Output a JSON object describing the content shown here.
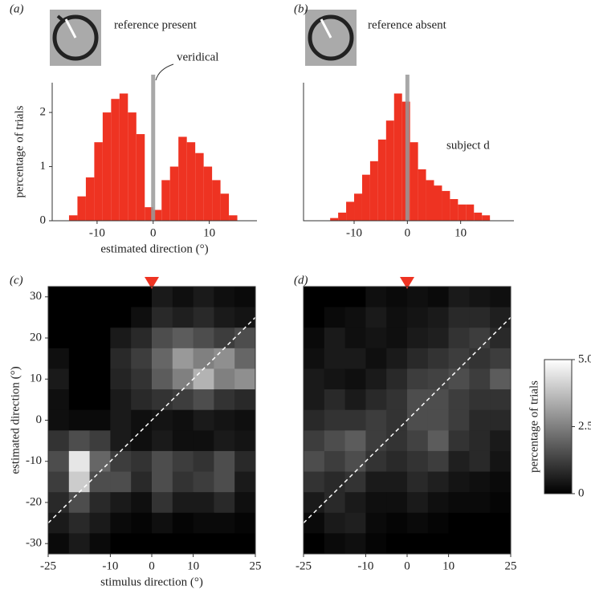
{
  "chart_data": [
    {
      "type": "histogram",
      "panel": "(a)",
      "title": "reference present",
      "annotation": "veridical",
      "xlabel": "estimated direction (°)",
      "ylabel": "percentage of trials",
      "bins": [
        -15,
        -13.5,
        -12,
        -10.5,
        -9,
        -7.5,
        -6,
        -4.5,
        -3,
        -1.5,
        0,
        1.5,
        3,
        4.5,
        6,
        7.5,
        9,
        10.5,
        12,
        13.5,
        15
      ],
      "values": [
        0.1,
        0.45,
        0.8,
        1.45,
        2.0,
        2.25,
        2.35,
        2.0,
        1.6,
        0.25,
        0.2,
        0.75,
        1.0,
        1.55,
        1.45,
        1.25,
        1.0,
        0.75,
        0.5,
        0.1
      ],
      "color": "#ee3322",
      "vline": 0,
      "vline_color": "#999999",
      "xlim": [
        -18,
        18.5
      ],
      "ylim": [
        0,
        2.55
      ],
      "xticks": [
        -10,
        0,
        10
      ],
      "yticks": [
        0,
        1,
        2
      ]
    },
    {
      "type": "histogram",
      "panel": "(b)",
      "title": "reference absent",
      "annotation": "subject d",
      "bins": [
        -14.5,
        -13,
        -11.5,
        -10,
        -8.5,
        -7,
        -5.5,
        -4,
        -2.5,
        -1,
        0.5,
        2,
        3.5,
        5,
        6.5,
        8,
        9.5,
        11,
        12.5,
        14,
        15.5
      ],
      "values": [
        0.05,
        0.15,
        0.35,
        0.5,
        0.85,
        1.1,
        1.5,
        1.85,
        2.35,
        2.2,
        1.45,
        0.95,
        0.75,
        0.65,
        0.55,
        0.4,
        0.3,
        0.3,
        0.15,
        0.1
      ],
      "color": "#ee3322",
      "vline": 0,
      "vline_color": "#999999",
      "xlim": [
        -19.5,
        20
      ],
      "ylim": [
        0,
        2.55
      ],
      "xticks": [
        -10,
        0,
        10
      ]
    },
    {
      "type": "heatmap",
      "panel": "(c)",
      "xlabel": "stimulus direction (°)",
      "ylabel": "estimated direction (°)",
      "x": [
        -22.5,
        -17.5,
        -12.5,
        -7.5,
        -2.5,
        2.5,
        7.5,
        12.5,
        17.5,
        22.5
      ],
      "y": [
        30,
        25,
        20,
        15,
        10,
        5,
        0,
        -5,
        -10,
        -15,
        -20,
        -25,
        -30
      ],
      "values": [
        [
          0,
          0,
          0,
          0,
          0,
          0.5,
          0.3,
          0.5,
          0.3,
          0.2
        ],
        [
          0,
          0,
          0,
          0,
          0.3,
          0.8,
          0.6,
          0.8,
          0.5,
          0.4
        ],
        [
          0,
          0,
          0,
          0.5,
          0.8,
          1.5,
          1.8,
          1.5,
          1.2,
          1.5
        ],
        [
          0.3,
          0,
          0,
          0.8,
          1.2,
          2.0,
          3.0,
          2.5,
          2.8,
          2.0
        ],
        [
          0.5,
          0,
          0,
          0.7,
          1.0,
          1.8,
          2.5,
          3.5,
          2.5,
          2.8
        ],
        [
          0.3,
          0,
          0,
          0.5,
          0.8,
          1.0,
          1.2,
          1.5,
          1.0,
          0.8
        ],
        [
          0.3,
          0.2,
          0.2,
          0.5,
          0.3,
          0.4,
          0.3,
          0.5,
          0.4,
          0.3
        ],
        [
          1.0,
          1.5,
          1.2,
          0.5,
          0.3,
          0.5,
          0.3,
          0.3,
          0.5,
          0.4
        ],
        [
          1.5,
          4.5,
          2.0,
          1.2,
          1.0,
          1.5,
          1.2,
          1.0,
          1.5,
          0.8
        ],
        [
          1.2,
          4.0,
          1.5,
          1.5,
          0.8,
          1.5,
          1.0,
          1.2,
          1.5,
          0.5
        ],
        [
          0.8,
          1.5,
          0.8,
          0.5,
          0.3,
          1.0,
          0.5,
          0.5,
          0.8,
          0.3
        ],
        [
          0.5,
          0.8,
          0.5,
          0.2,
          0.1,
          0.3,
          0.1,
          0.2,
          0.2,
          0.1
        ],
        [
          0.2,
          0.5,
          0.2,
          0,
          0,
          0,
          0,
          0,
          0,
          0
        ]
      ],
      "identity_line": true,
      "marker_x": 0,
      "marker_color": "#ee3322",
      "xlim": [
        -25,
        25
      ],
      "ylim": [
        -32.5,
        32.5
      ],
      "xticks": [
        -25,
        -10,
        0,
        10,
        25
      ],
      "yticks": [
        -30,
        -20,
        -10,
        0,
        10,
        20,
        30
      ]
    },
    {
      "type": "heatmap",
      "panel": "(d)",
      "x": [
        -22.5,
        -17.5,
        -12.5,
        -7.5,
        -2.5,
        2.5,
        7.5,
        12.5,
        17.5,
        22.5
      ],
      "y": [
        30,
        25,
        20,
        15,
        10,
        5,
        0,
        -5,
        -10,
        -15,
        -20,
        -25,
        -30
      ],
      "values": [
        [
          0,
          0,
          0,
          0.3,
          0.2,
          0.3,
          0.2,
          0.5,
          0.4,
          0.3
        ],
        [
          0,
          0.2,
          0.3,
          0.5,
          0.3,
          0.4,
          0.5,
          0.8,
          0.8,
          0.6
        ],
        [
          0.2,
          0.5,
          0.3,
          0.4,
          0.3,
          0.5,
          0.6,
          1.0,
          1.2,
          0.8
        ],
        [
          0.3,
          0.5,
          0.5,
          0.3,
          0.5,
          0.8,
          1.0,
          1.2,
          1.0,
          1.2
        ],
        [
          0.5,
          0.4,
          0.3,
          0.5,
          0.8,
          1.2,
          1.3,
          1.5,
          1.2,
          1.8
        ],
        [
          0.5,
          0.8,
          0.5,
          0.8,
          1.0,
          1.5,
          1.5,
          1.2,
          1.0,
          1.0
        ],
        [
          0.8,
          1.0,
          1.0,
          1.2,
          1.0,
          1.5,
          1.5,
          1.2,
          0.8,
          0.8
        ],
        [
          1.2,
          1.5,
          1.8,
          1.2,
          1.0,
          1.3,
          1.8,
          1.0,
          0.8,
          0.5
        ],
        [
          1.5,
          1.2,
          1.5,
          1.0,
          0.8,
          1.0,
          1.2,
          0.6,
          0.8,
          0.4
        ],
        [
          1.0,
          0.8,
          1.0,
          0.5,
          0.5,
          0.8,
          0.6,
          0.4,
          0.3,
          0.2
        ],
        [
          0.5,
          0.8,
          0.5,
          0.3,
          0.3,
          0.5,
          0.3,
          0.2,
          0.2,
          0.1
        ],
        [
          0.2,
          0.5,
          0.6,
          0.2,
          0.1,
          0.2,
          0.1,
          0,
          0,
          0
        ],
        [
          0,
          0.2,
          0.3,
          0.1,
          0,
          0,
          0,
          0,
          0,
          0
        ]
      ],
      "identity_line": true,
      "marker_x": 0,
      "marker_color": "#ee3322",
      "xlim": [
        -25,
        25
      ],
      "ylim": [
        -32.5,
        32.5
      ],
      "xticks": [
        -25,
        -10,
        0,
        10,
        25
      ],
      "colorbar": {
        "label": "percentage of trials",
        "colormap": "gray",
        "lim": [
          0,
          5
        ],
        "ticks": [
          0,
          2.5,
          {
            "value": 5,
            "label": "5.0"
          }
        ]
      }
    }
  ]
}
